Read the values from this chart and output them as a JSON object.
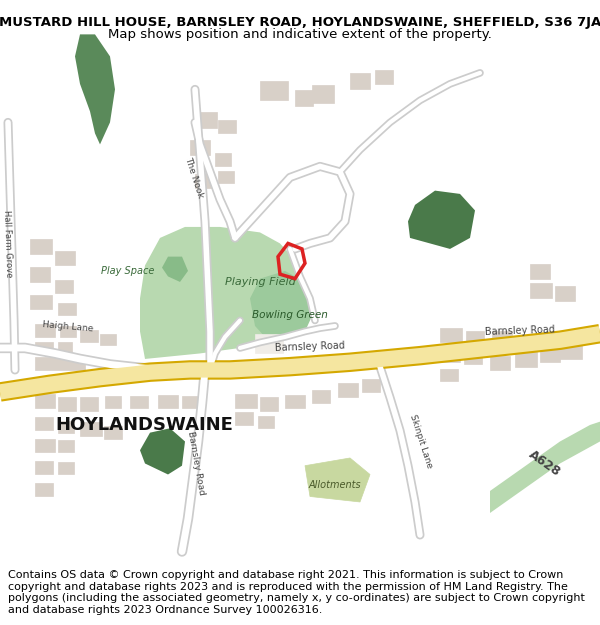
{
  "title_line1": "MUSTARD HILL HOUSE, BARNSLEY ROAD, HOYLANDSWAINE, SHEFFIELD, S36 7JA",
  "title_line2": "Map shows position and indicative extent of the property.",
  "footer_text": "Contains OS data © Crown copyright and database right 2021. This information is subject to Crown copyright and database rights 2023 and is reproduced with the permission of HM Land Registry. The polygons (including the associated geometry, namely x, y co-ordinates) are subject to Crown copyright and database rights 2023 Ordnance Survey 100026316.",
  "title_fontsize": 9.5,
  "subtitle_fontsize": 9.5,
  "footer_fontsize": 8.0,
  "bg_color": "#ffffff",
  "fig_width": 6.0,
  "fig_height": 6.25,
  "dpi": 100
}
